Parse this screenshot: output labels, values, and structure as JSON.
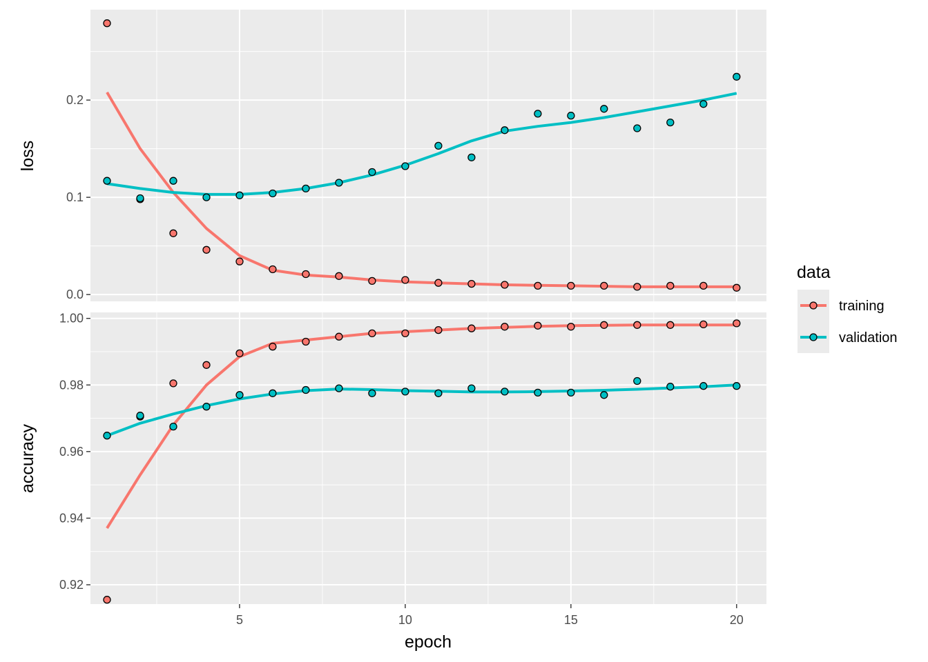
{
  "chart_data": {
    "type": "scatter",
    "x_label": "epoch",
    "x_ticks": [
      5,
      10,
      15,
      20
    ],
    "x_range": [
      0.5,
      20.9
    ],
    "legend": {
      "title": "data",
      "placement": "right",
      "entries": [
        {
          "name": "training",
          "color": "#F8766D"
        },
        {
          "name": "validation",
          "color": "#00BFC4"
        }
      ]
    },
    "grid": true,
    "panels": [
      {
        "id": "loss",
        "y_label": "loss",
        "y_range": [
          -0.007,
          0.293
        ],
        "y_ticks": [
          0.0,
          0.1,
          0.2
        ],
        "y_tick_labels": [
          "0.0",
          "0.1",
          "0.2"
        ],
        "series": [
          {
            "name": "training",
            "color": "#F8766D",
            "points": [
              [
                1,
                0.279
              ],
              [
                2,
                0.098
              ],
              [
                3,
                0.063
              ],
              [
                4,
                0.046
              ],
              [
                5,
                0.034
              ],
              [
                6,
                0.026
              ],
              [
                7,
                0.021
              ],
              [
                8,
                0.019
              ],
              [
                9,
                0.014
              ],
              [
                10,
                0.015
              ],
              [
                11,
                0.012
              ],
              [
                12,
                0.011
              ],
              [
                13,
                0.01
              ],
              [
                14,
                0.009
              ],
              [
                15,
                0.009
              ],
              [
                16,
                0.009
              ],
              [
                17,
                0.008
              ],
              [
                18,
                0.009
              ],
              [
                19,
                0.009
              ],
              [
                20,
                0.007
              ]
            ],
            "smooth": [
              [
                1,
                0.208
              ],
              [
                2,
                0.15
              ],
              [
                3,
                0.105
              ],
              [
                4,
                0.068
              ],
              [
                5,
                0.04
              ],
              [
                6,
                0.025
              ],
              [
                7,
                0.02
              ],
              [
                8,
                0.018
              ],
              [
                9,
                0.015
              ],
              [
                10,
                0.013
              ],
              [
                11,
                0.012
              ],
              [
                12,
                0.011
              ],
              [
                13,
                0.01
              ],
              [
                14,
                0.0095
              ],
              [
                15,
                0.009
              ],
              [
                16,
                0.0085
              ],
              [
                17,
                0.008
              ],
              [
                18,
                0.008
              ],
              [
                19,
                0.008
              ],
              [
                20,
                0.008
              ]
            ]
          },
          {
            "name": "validation",
            "color": "#00BFC4",
            "points": [
              [
                1,
                0.117
              ],
              [
                2,
                0.099
              ],
              [
                3,
                0.117
              ],
              [
                4,
                0.1
              ],
              [
                5,
                0.102
              ],
              [
                6,
                0.104
              ],
              [
                7,
                0.109
              ],
              [
                8,
                0.115
              ],
              [
                9,
                0.126
              ],
              [
                10,
                0.132
              ],
              [
                11,
                0.153
              ],
              [
                12,
                0.141
              ],
              [
                13,
                0.169
              ],
              [
                14,
                0.186
              ],
              [
                15,
                0.184
              ],
              [
                16,
                0.191
              ],
              [
                17,
                0.171
              ],
              [
                18,
                0.177
              ],
              [
                19,
                0.196
              ],
              [
                20,
                0.224
              ]
            ],
            "smooth": [
              [
                1,
                0.114
              ],
              [
                2,
                0.109
              ],
              [
                3,
                0.105
              ],
              [
                4,
                0.103
              ],
              [
                5,
                0.103
              ],
              [
                6,
                0.105
              ],
              [
                7,
                0.109
              ],
              [
                8,
                0.115
              ],
              [
                9,
                0.123
              ],
              [
                10,
                0.133
              ],
              [
                11,
                0.145
              ],
              [
                12,
                0.158
              ],
              [
                13,
                0.168
              ],
              [
                14,
                0.173
              ],
              [
                15,
                0.177
              ],
              [
                16,
                0.182
              ],
              [
                17,
                0.188
              ],
              [
                18,
                0.194
              ],
              [
                19,
                0.2
              ],
              [
                20,
                0.207
              ]
            ]
          }
        ]
      },
      {
        "id": "accuracy",
        "y_label": "accuracy",
        "y_range": [
          0.9142,
          1.0018
        ],
        "y_ticks": [
          0.92,
          0.94,
          0.96,
          0.98,
          1.0
        ],
        "y_tick_labels": [
          "0.92",
          "0.94",
          "0.96",
          "0.98",
          "1.00"
        ],
        "series": [
          {
            "name": "training",
            "color": "#F8766D",
            "points": [
              [
                1,
                0.9155
              ],
              [
                2,
                0.9705
              ],
              [
                3,
                0.9805
              ],
              [
                4,
                0.986
              ],
              [
                5,
                0.9895
              ],
              [
                6,
                0.9915
              ],
              [
                7,
                0.993
              ],
              [
                8,
                0.9945
              ],
              [
                9,
                0.9955
              ],
              [
                10,
                0.9955
              ],
              [
                11,
                0.9965
              ],
              [
                12,
                0.997
              ],
              [
                13,
                0.9975
              ],
              [
                14,
                0.9978
              ],
              [
                15,
                0.9975
              ],
              [
                16,
                0.998
              ],
              [
                17,
                0.998
              ],
              [
                18,
                0.998
              ],
              [
                19,
                0.9982
              ],
              [
                20,
                0.9985
              ]
            ],
            "smooth": [
              [
                1,
                0.937
              ],
              [
                2,
                0.953
              ],
              [
                3,
                0.968
              ],
              [
                4,
                0.98
              ],
              [
                5,
                0.9885
              ],
              [
                6,
                0.9925
              ],
              [
                7,
                0.9935
              ],
              [
                8,
                0.9945
              ],
              [
                9,
                0.9955
              ],
              [
                10,
                0.996
              ],
              [
                11,
                0.9965
              ],
              [
                12,
                0.997
              ],
              [
                13,
                0.9973
              ],
              [
                14,
                0.9976
              ],
              [
                15,
                0.9978
              ],
              [
                16,
                0.9979
              ],
              [
                17,
                0.998
              ],
              [
                18,
                0.998
              ],
              [
                19,
                0.998
              ],
              [
                20,
                0.998
              ]
            ]
          },
          {
            "name": "validation",
            "color": "#00BFC4",
            "points": [
              [
                1,
                0.9648
              ],
              [
                2,
                0.9708
              ],
              [
                3,
                0.9675
              ],
              [
                4,
                0.9735
              ],
              [
                5,
                0.977
              ],
              [
                6,
                0.9775
              ],
              [
                7,
                0.9785
              ],
              [
                8,
                0.979
              ],
              [
                9,
                0.9775
              ],
              [
                10,
                0.978
              ],
              [
                11,
                0.9775
              ],
              [
                12,
                0.979
              ],
              [
                13,
                0.978
              ],
              [
                14,
                0.9777
              ],
              [
                15,
                0.9777
              ],
              [
                16,
                0.977
              ],
              [
                17,
                0.9812
              ],
              [
                18,
                0.9795
              ],
              [
                19,
                0.9797
              ],
              [
                20,
                0.9797
              ]
            ],
            "smooth": [
              [
                1,
                0.9648
              ],
              [
                2,
                0.9685
              ],
              [
                3,
                0.9713
              ],
              [
                4,
                0.9738
              ],
              [
                5,
                0.9758
              ],
              [
                6,
                0.9773
              ],
              [
                7,
                0.9783
              ],
              [
                8,
                0.9788
              ],
              [
                9,
                0.9786
              ],
              [
                10,
                0.9783
              ],
              [
                11,
                0.9781
              ],
              [
                12,
                0.9779
              ],
              [
                13,
                0.9779
              ],
              [
                14,
                0.978
              ],
              [
                15,
                0.9782
              ],
              [
                16,
                0.9784
              ],
              [
                17,
                0.9787
              ],
              [
                18,
                0.9791
              ],
              [
                19,
                0.9795
              ],
              [
                20,
                0.98
              ]
            ]
          }
        ]
      }
    ]
  }
}
